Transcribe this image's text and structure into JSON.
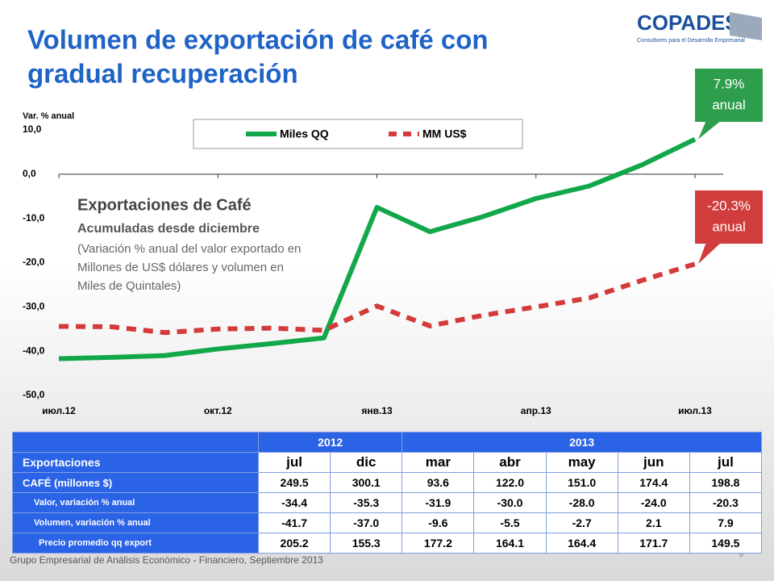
{
  "header": {
    "title_lines": [
      "Volumen de exportación de café con",
      "gradual recuperación"
    ],
    "logo": "COPADES",
    "logo_tagline": "Consultores para el Desarrollo Empresarial"
  },
  "chart_data": {
    "type": "line",
    "y_label": "Var. % anual",
    "categories": [
      "июл.12",
      null,
      null,
      "окт.12",
      null,
      null,
      "янв.13",
      null,
      null,
      "апр.13",
      null,
      null,
      "июл.13"
    ],
    "series": [
      {
        "name": "Miles QQ",
        "color": "#12a84a",
        "dashed": false,
        "values": [
          -41.7,
          -41.4,
          -41.0,
          -39.5,
          -38.3,
          -37.0,
          -7.5,
          -13.0,
          -9.6,
          -5.5,
          -2.7,
          2.1,
          7.9
        ]
      },
      {
        "name": "MM US$",
        "color": "#d33a3a",
        "dashed": true,
        "values": [
          -34.4,
          -34.5,
          -35.8,
          -35.0,
          -34.8,
          -35.3,
          -29.8,
          -34.3,
          -31.9,
          -30.0,
          -28.0,
          -24.0,
          -20.3
        ]
      }
    ],
    "ylim": [
      -50,
      10
    ],
    "yticks": [
      {
        "value": 10,
        "label": "10,0"
      },
      {
        "value": 0,
        "label": "0,0"
      },
      {
        "value": -10,
        "label": "-10,0"
      },
      {
        "value": -20,
        "label": "-20,0"
      },
      {
        "value": -30,
        "label": "-30,0"
      },
      {
        "value": -40,
        "label": "-40,0"
      },
      {
        "value": -50,
        "label": "-50,0"
      }
    ],
    "annotations": {
      "heading": "Exportaciones de Café",
      "subheading": "Acumuladas desde diciembre",
      "note_lines": [
        "(Variación % anual  del valor exportado en",
        "Millones de US$ dólares y volumen en",
        "Miles de Quintales)"
      ],
      "callout_green": [
        "7.9%",
        "anual"
      ],
      "callout_red": [
        "-20.3%",
        "anual"
      ]
    }
  },
  "table": {
    "year_headers": [
      "2012",
      "2013"
    ],
    "row_header": "Exportaciones",
    "months": [
      "jul",
      "dic",
      "mar",
      "abr",
      "may",
      "jun",
      "jul"
    ],
    "rows": [
      {
        "label": "CAFÉ (millones $)",
        "cells": [
          "249.5",
          "300.1",
          "93.6",
          "122.0",
          "151.0",
          "174.4",
          "198.8"
        ]
      },
      {
        "label": "Valor, variación % anual",
        "cells": [
          "-34.4",
          "-35.3",
          "-31.9",
          "-30.0",
          "-28.0",
          "-24.0",
          "-20.3"
        ]
      },
      {
        "label": "Volumen, variación % anual",
        "cells": [
          "-41.7",
          "-37.0",
          "-9.6",
          "-5.5",
          "-2.7",
          "2.1",
          "7.9"
        ]
      },
      {
        "label": "Precio promedio qq export",
        "cells": [
          "205.2",
          "155.3",
          "177.2",
          "164.1",
          "164.4",
          "171.7",
          "149.5"
        ]
      }
    ]
  },
  "footer": {
    "text": "Grupo Empresarial de Análisis Económico - Financiero, Septiembre 2013",
    "page": "9"
  }
}
